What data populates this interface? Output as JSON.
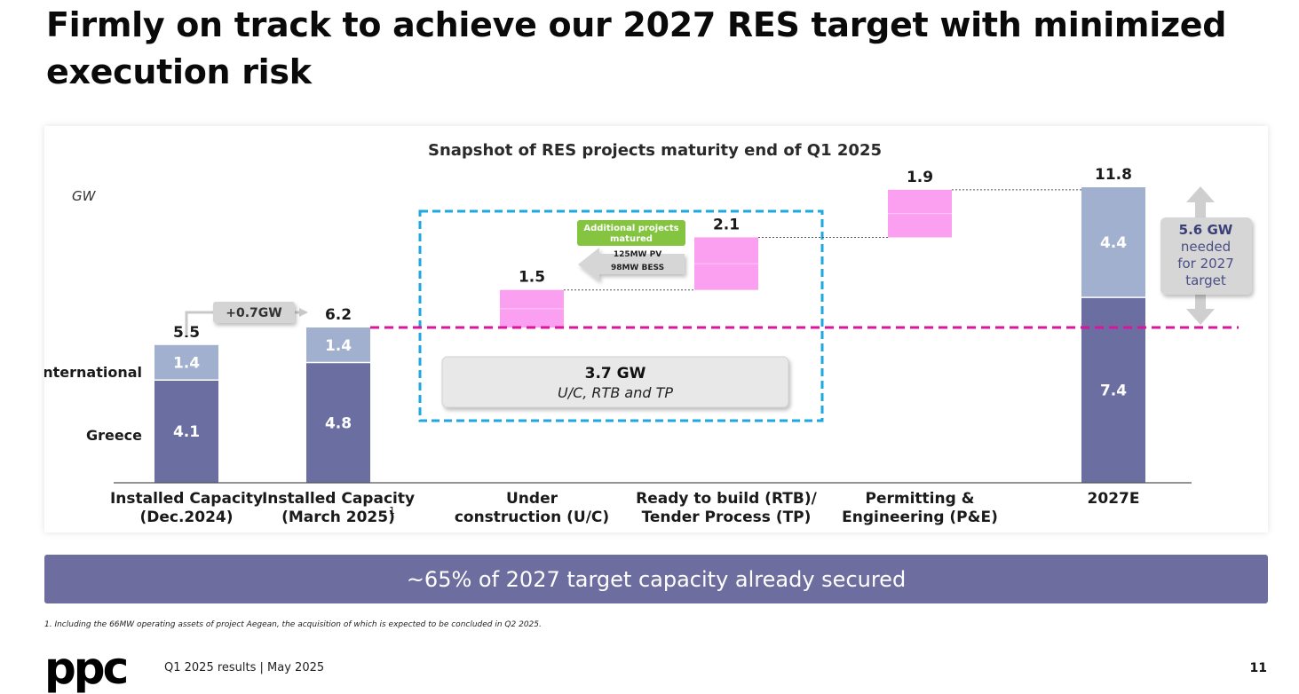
{
  "page": {
    "title": "Firmly on track to achieve our 2027 RES target with minimized execution risk",
    "banner": "~65% of 2027 target capacity already secured",
    "footnote": "1. Including the 66MW operating assets of  project Aegean, the acquisition of which is expected to be concluded  in Q2 2025.",
    "logo_text": "ppc",
    "footer": "Q1 2025 results | May 2025",
    "page_number": "11"
  },
  "chart_data": {
    "type": "bar",
    "subtype": "waterfall",
    "title": "Snapshot of RES projects maturity end of Q1 2025",
    "ylabel": "GW",
    "ylim": [
      0,
      12.5
    ],
    "categories": [
      [
        "Installed Capacity",
        "(Dec.2024)"
      ],
      [
        "Installed Capacity",
        "(March 2025)"
      ],
      [
        "Under",
        "construction (U/C)"
      ],
      [
        "Ready to build (RTB)/",
        "Tender Process (TP)"
      ],
      [
        "Permitting &",
        "Engineering (P&E)"
      ],
      [
        "2027E"
      ]
    ],
    "footnote_marker": "1",
    "stack_labels": [
      "International",
      "Greece"
    ],
    "series": [
      {
        "name": "Greece",
        "color": "#6b6ea1",
        "values": [
          4.1,
          4.8,
          null,
          null,
          null,
          7.4
        ]
      },
      {
        "name": "International",
        "color": "#a1b0cf",
        "values": [
          1.4,
          1.4,
          null,
          null,
          null,
          4.4
        ]
      },
      {
        "name": "Increment",
        "color": "#fb9ff1",
        "values": [
          null,
          null,
          1.5,
          2.1,
          1.9,
          null
        ],
        "base": [
          null,
          null,
          6.2,
          7.7,
          9.8,
          null
        ]
      }
    ],
    "totals": [
      "5.5",
      "6.2",
      "1.5",
      "2.1",
      "1.9",
      "11.8"
    ],
    "segment_labels": {
      "greece": [
        "4.1",
        "4.8",
        "7.4"
      ],
      "international": [
        "1.4",
        "1.4",
        "4.4"
      ]
    },
    "reference_line": {
      "y": 6.2,
      "color": "#e0119d",
      "style": "dashed"
    },
    "annotations": {
      "growth": "+0.7GW",
      "matured": {
        "header": "Additional projects matured",
        "lines": [
          "125MW PV",
          "98MW BESS"
        ]
      },
      "secured": {
        "value": "3.7 GW",
        "text": "U/C, RTB and TP"
      },
      "gap": {
        "value": "5.6 GW",
        "lines": [
          "needed",
          "for 2027",
          "target"
        ]
      }
    },
    "colors": {
      "greece": "#6b6ea1",
      "international": "#a1b0cf",
      "increment": "#fb9ff1",
      "reference": "#e0119d",
      "box": "#1ea7e1",
      "tag": "#84c441"
    }
  }
}
